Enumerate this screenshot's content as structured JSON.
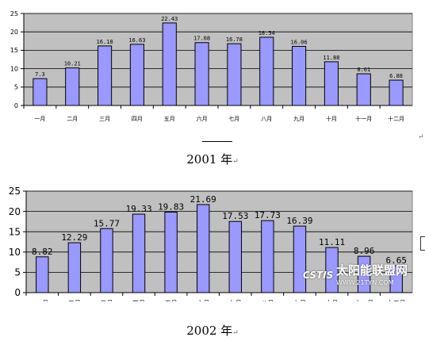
{
  "chart_data": [
    {
      "type": "bar",
      "categories": [
        "一月",
        "二月",
        "三月",
        "四月",
        "五月",
        "六月",
        "七月",
        "八月",
        "九月",
        "十月",
        "十一月",
        "十二月"
      ],
      "values": [
        7.3,
        10.21,
        16.18,
        16.63,
        22.43,
        17.08,
        16.78,
        18.54,
        16.06,
        11.88,
        8.61,
        6.88
      ],
      "value_labels": [
        "7.3",
        "10.21",
        "16.18",
        "16.63",
        "22.43",
        "17.08",
        "16.78",
        "18.54",
        "16.06",
        "11.88",
        "8.61",
        "6.88"
      ],
      "yticks": [
        "0",
        "5",
        "10",
        "15",
        "20",
        "25"
      ],
      "ylim": [
        0,
        25
      ],
      "grid": true,
      "title": "",
      "xlabel": "",
      "ylabel": "",
      "bar_color": "#9999ff",
      "plot_bg": "#c0c0c0"
    },
    {
      "type": "bar",
      "categories": [
        "一月",
        "二月",
        "三月",
        "四月",
        "五月",
        "六月",
        "七月",
        "八月",
        "九月",
        "十月",
        "十一月",
        "十二月"
      ],
      "values": [
        8.82,
        12.29,
        15.77,
        19.33,
        19.83,
        21.69,
        17.53,
        17.73,
        16.39,
        11.11,
        8.96,
        6.65
      ],
      "value_labels": [
        "8.82",
        "12.29",
        "15.77",
        "19.33",
        "19.83",
        "21.69",
        "17.53",
        "17.73",
        "16.39",
        "11.11",
        "8.96",
        "6.65"
      ],
      "yticks": [
        "0",
        "5",
        "10",
        "15",
        "20",
        "25"
      ],
      "ylim": [
        0,
        25
      ],
      "grid": true,
      "title": "",
      "xlabel": "",
      "ylabel": "",
      "bar_color": "#9999ff",
      "plot_bg": "#c0c0c0"
    }
  ],
  "captions": {
    "first": "2001 年",
    "second": "2002 年",
    "para_mark": "↵"
  },
  "watermark": {
    "logo": "CSTIS",
    "name": "太阳能联盟网",
    "url": "WWW.21TYN.COM"
  }
}
